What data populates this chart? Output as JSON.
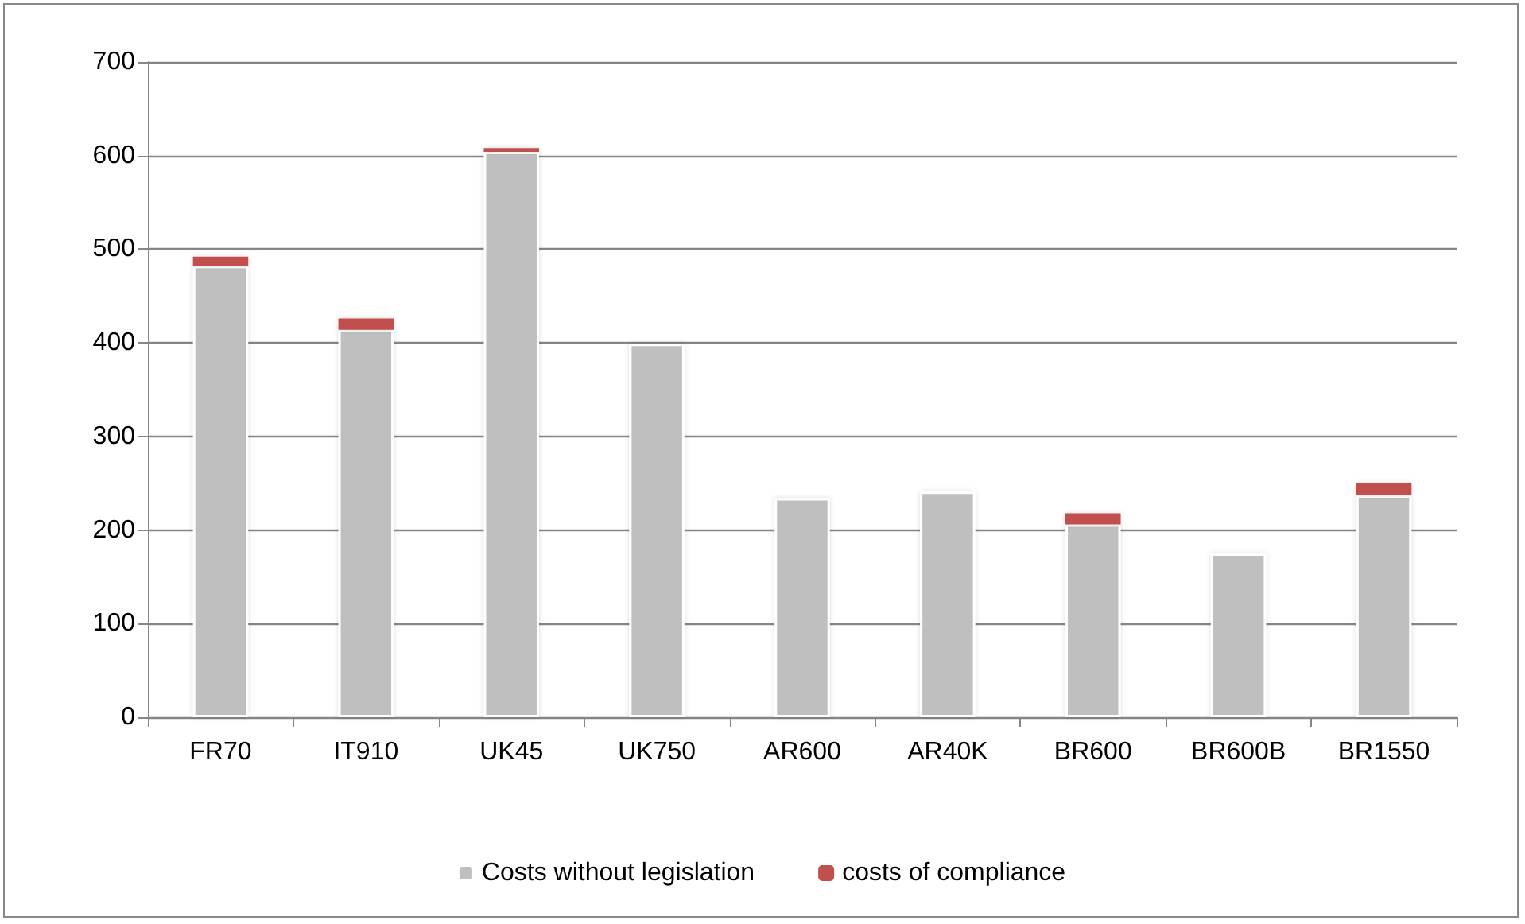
{
  "chart_data": {
    "type": "bar",
    "stacked": true,
    "categories": [
      "FR70",
      "IT910",
      "UK45",
      "UK750",
      "AR600",
      "AR40K",
      "BR600",
      "BR600B",
      "BR1550"
    ],
    "series": [
      {
        "name": "Costs without legislation",
        "color": "#bfbfbf",
        "values": [
          482,
          414,
          604,
          399,
          234,
          241,
          206,
          175,
          237
        ]
      },
      {
        "name": "costs of compliance",
        "color": "#c0504d",
        "values": [
          10,
          12,
          4,
          null,
          null,
          null,
          12,
          null,
          13
        ]
      }
    ],
    "ylim": [
      0,
      700
    ],
    "yticks": [
      0,
      100,
      200,
      300,
      400,
      500,
      600,
      700
    ],
    "grid": "y",
    "legend": "bottom"
  }
}
